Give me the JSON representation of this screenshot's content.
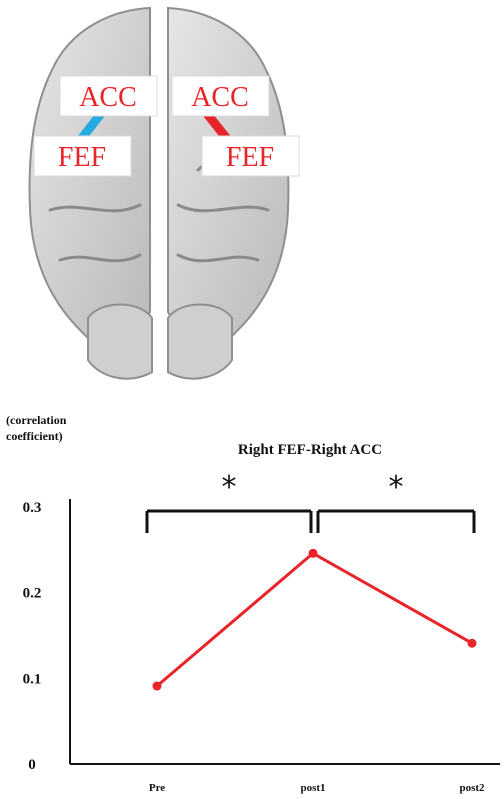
{
  "brain_figure": {
    "left_hemisphere": {
      "top_label": "ACC",
      "bottom_label": "FEF",
      "connection_color": "#27a9e1"
    },
    "right_hemisphere": {
      "top_label": "ACC",
      "bottom_label": "FEF",
      "connection_color": "#e8232a"
    },
    "label_color": "#e8232a"
  },
  "chart_data": {
    "type": "line",
    "title": "Right FEF-Right ACC",
    "ylabel_line1": "(correlation",
    "ylabel_line2": "coefficient)",
    "xlabel": "",
    "categories": [
      "Pre",
      "post1",
      "post2"
    ],
    "series": [
      {
        "values": [
          0.091,
          0.246,
          0.141
        ],
        "color": "#e8232a"
      }
    ],
    "ylim": [
      0,
      0.3
    ],
    "yticks": [
      0,
      0.1,
      0.2,
      0.3
    ],
    "ytick_labels": [
      "0",
      "0.1",
      "0.2",
      "0.3"
    ],
    "grid": false,
    "significance": [
      {
        "from": "Pre",
        "to": "post1",
        "label": "*"
      },
      {
        "from": "post1",
        "to": "post2",
        "label": "*"
      }
    ]
  }
}
